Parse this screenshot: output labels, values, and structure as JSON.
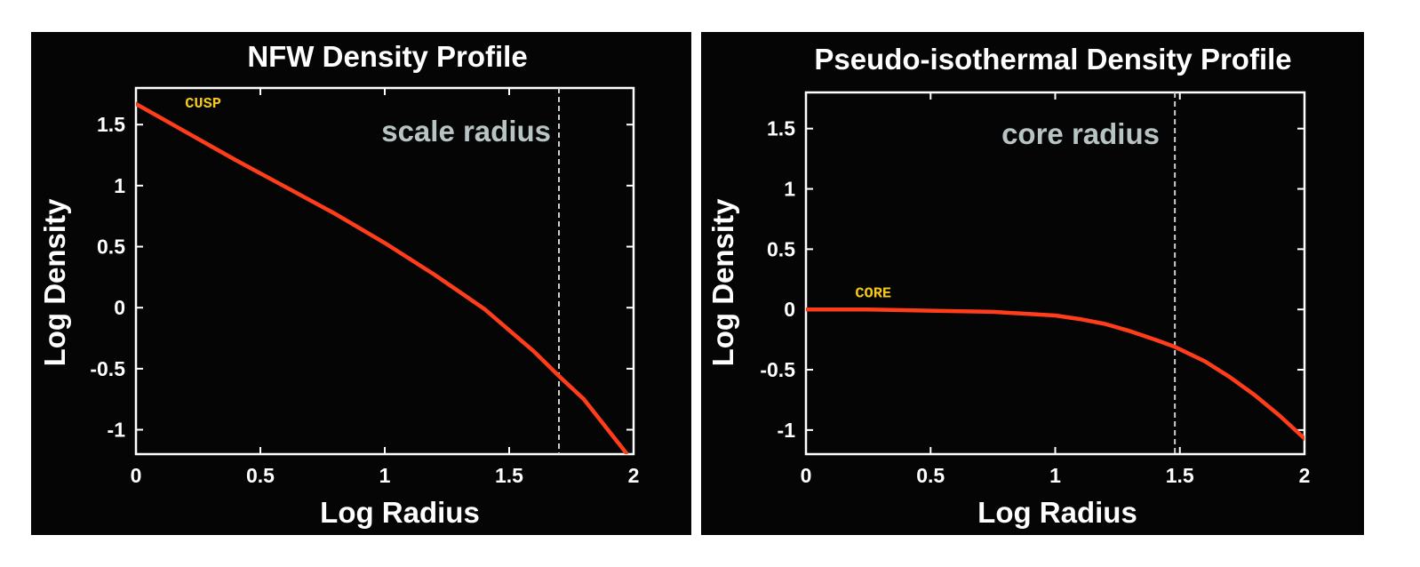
{
  "colors": {
    "background": "#050505",
    "axis": "#ffffff",
    "curve": "#ff3d1a",
    "marker_line": "#c8d0d0",
    "annotation": "#b8c4c4",
    "point_label": "#f3c81c"
  },
  "chart_data": [
    {
      "type": "line",
      "title": "NFW Density Profile",
      "xlabel": "Log Radius",
      "ylabel": "Log Density",
      "xlim": [
        0,
        2
      ],
      "ylim": [
        -1.2,
        1.8
      ],
      "xticks": [
        0,
        0.5,
        1,
        1.5,
        2
      ],
      "xtick_labels": [
        "0",
        "0.5",
        "1",
        "1.5",
        "2"
      ],
      "yticks": [
        -1,
        -0.5,
        0,
        0.5,
        1,
        1.5
      ],
      "ytick_labels": [
        "-1",
        "-0.5",
        "0",
        "0.5",
        "1",
        "1.5"
      ],
      "grid": false,
      "series": [
        {
          "x": [
            0,
            0.2,
            0.4,
            0.6,
            0.8,
            1.0,
            1.2,
            1.4,
            1.6,
            1.7,
            1.8,
            1.97
          ],
          "y": [
            1.67,
            1.44,
            1.21,
            0.99,
            0.77,
            0.53,
            0.27,
            -0.01,
            -0.36,
            -0.56,
            -0.75,
            -1.19
          ]
        }
      ],
      "vline": {
        "x": 1.7,
        "label": "scale radius"
      },
      "point_label": {
        "text": "CUSP",
        "x": 0.27,
        "y": 1.64
      }
    },
    {
      "type": "line",
      "title": "Pseudo-isothermal Density Profile",
      "xlabel": "Log Radius",
      "ylabel": "Log Density",
      "xlim": [
        0,
        2
      ],
      "ylim": [
        -1.2,
        1.8
      ],
      "xticks": [
        0,
        0.5,
        1,
        1.5,
        2
      ],
      "xtick_labels": [
        "0",
        "0.5",
        "1",
        "1.5",
        "2"
      ],
      "yticks": [
        -1,
        -0.5,
        0,
        0.5,
        1,
        1.5
      ],
      "ytick_labels": [
        "-1",
        "-0.5",
        "0",
        "0.5",
        "1",
        "1.5"
      ],
      "grid": false,
      "series": [
        {
          "x": [
            0,
            0.25,
            0.5,
            0.75,
            1.0,
            1.1,
            1.2,
            1.3,
            1.4,
            1.48,
            1.6,
            1.7,
            1.8,
            1.9,
            2.0
          ],
          "y": [
            0.0,
            0.0,
            -0.01,
            -0.02,
            -0.05,
            -0.08,
            -0.12,
            -0.18,
            -0.25,
            -0.31,
            -0.43,
            -0.56,
            -0.71,
            -0.88,
            -1.07
          ]
        }
      ],
      "vline": {
        "x": 1.48,
        "label": "core radius"
      },
      "point_label": {
        "text": "CORE",
        "x": 0.27,
        "y": 0.1
      }
    }
  ]
}
